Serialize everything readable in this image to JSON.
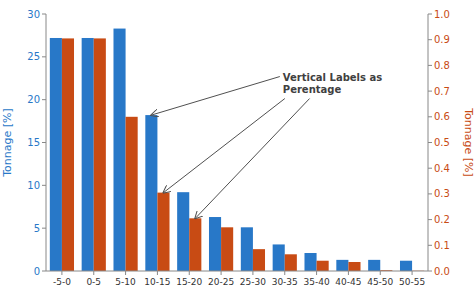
{
  "chart_data": {
    "type": "bar",
    "categories": [
      "-5-0",
      "0-5",
      "5-10",
      "10-15",
      "15-20",
      "20-25",
      "25-30",
      "30-35",
      "35-40",
      "40-45",
      "45-50",
      "50-55"
    ],
    "series": [
      {
        "name": "Tonnage [%]",
        "color": "#2878C8",
        "axis": "y",
        "values": [
          27.2,
          27.2,
          28.3,
          18.2,
          9.2,
          6.3,
          5.1,
          3.1,
          2.1,
          1.3,
          1.3,
          1.2
        ]
      },
      {
        "name": "Tonnage [%]",
        "color": "#C84B14",
        "axis": "y2",
        "values": [
          0.905,
          0.905,
          0.6,
          0.305,
          0.205,
          0.17,
          0.085,
          0.065,
          0.04,
          0.035,
          0.003,
          0.001
        ]
      }
    ],
    "ylabel": "Tonnage [%]",
    "y2label": "Tonnage [%]",
    "ylim": [
      0,
      30
    ],
    "yticks": [
      0,
      5,
      10,
      15,
      20,
      25,
      30
    ],
    "y2lim": [
      0,
      1.0
    ],
    "y2ticks": [
      {
        "value": 0,
        "label": "0.0"
      },
      0.1,
      0.2,
      0.3,
      0.4,
      0.5,
      0.6,
      0.7,
      0.8,
      0.9,
      {
        "value": 1.0,
        "label": "1.0"
      }
    ],
    "annotation": "Vertical Labels as\nPerentage",
    "grid": false,
    "legend": false
  }
}
